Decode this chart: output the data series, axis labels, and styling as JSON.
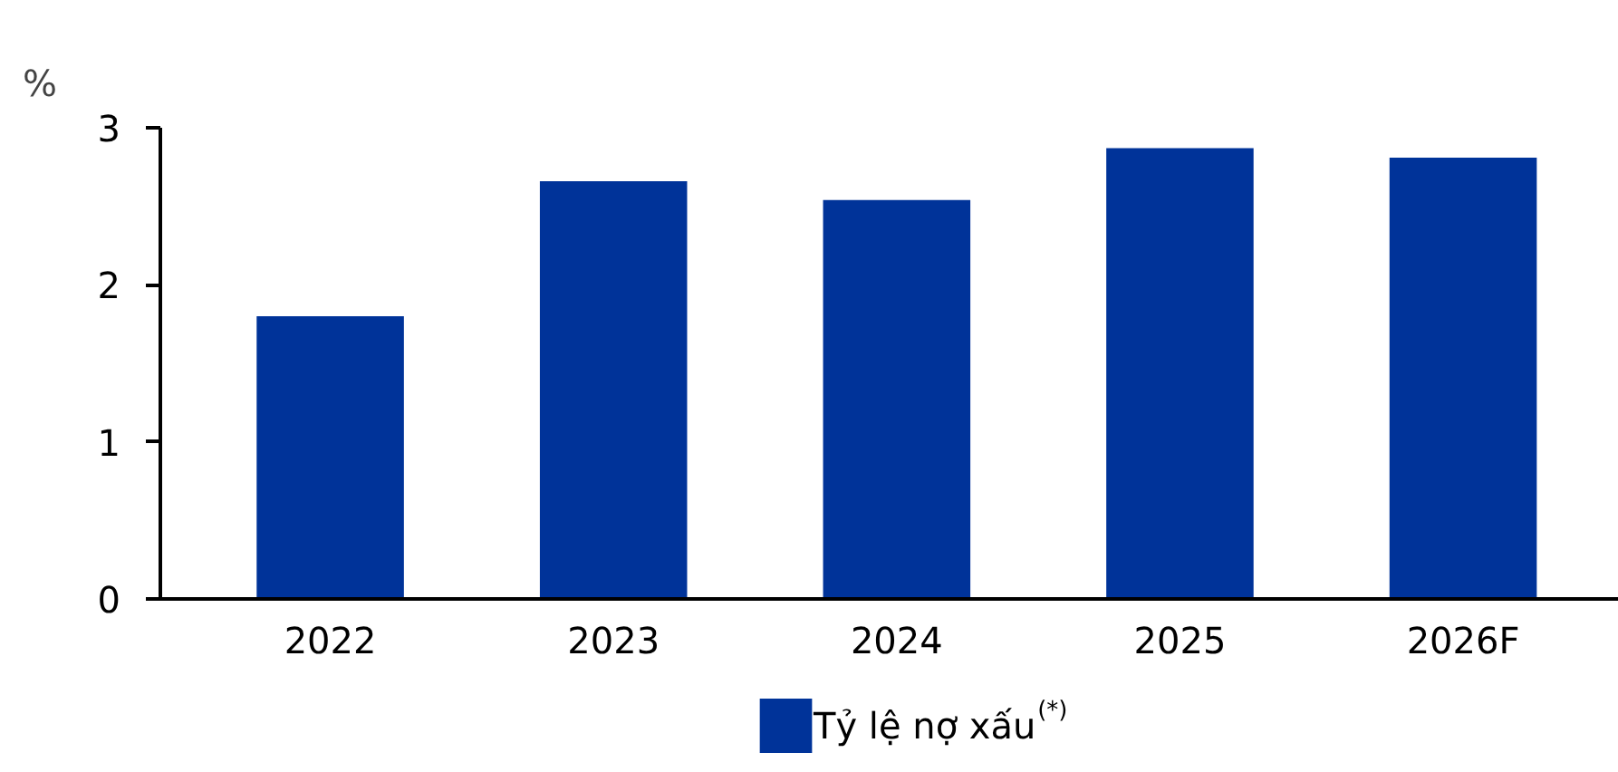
{
  "chart_data": {
    "type": "bar",
    "ylabel": "%",
    "categories": [
      "2022",
      "2023",
      "2024",
      "2025",
      "2026F"
    ],
    "series": [
      {
        "name": "Tỷ lệ nợ xấu$^{(*)}$",
        "color": "#003399",
        "values": [
          1.8,
          2.66,
          2.54,
          2.87,
          2.81
        ]
      }
    ],
    "ylim": [
      0,
      3
    ],
    "yticks": [
      0,
      1,
      2,
      3
    ],
    "grid": false,
    "legend": "bottom"
  }
}
